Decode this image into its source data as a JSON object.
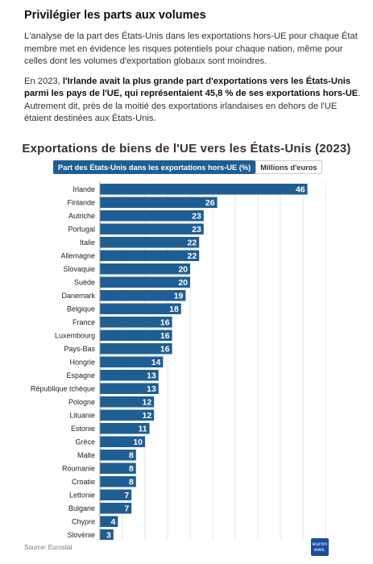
{
  "article": {
    "heading": "Privilégier les parts aux volumes",
    "para1": "L'analyse de la part des États-Unis dans les exportations hors-UE pour chaque État membre met en évidence les risques potentiels pour chaque nation, même pour celles dont les volumes d'exportation globaux sont moindres.",
    "para2_lead": "En 2023, ",
    "para2_bold": "l'Irlande avait la plus grande part d'exportations vers les États-Unis parmi les pays de l'UE, qui représentaient 45,8 % de ses exportations hors-UE",
    "para2_rest": ". Autrement dit, près de la moitié des exportations irlandaises en dehors de l'UE étaient destinées aux États-Unis."
  },
  "toggle": {
    "share_label": "Part des États-Unis dans les exportations hors-UE (%)",
    "millions_label": "Millions d'euros",
    "active": "share"
  },
  "source": "Source: Eurostat",
  "logo_text": "euronews.",
  "colors": {
    "bar": "#1f5e92",
    "toggle_active": "#1f5e92",
    "logo": "#1d4c9b"
  },
  "chart_data": {
    "type": "bar",
    "orientation": "horizontal",
    "title": "Exportations de biens de l'UE vers les États-Unis (2023)",
    "xlabel": "",
    "ylabel": "",
    "xlim": [
      0,
      50
    ],
    "xticks": [
      0,
      5,
      10,
      15,
      20,
      25,
      30,
      35,
      40,
      45,
      50
    ],
    "grid": true,
    "categories": [
      "Irlande",
      "Finlande",
      "Autriche",
      "Portugal",
      "Italie",
      "Allemagne",
      "Slovaquie",
      "Suède",
      "Danemark",
      "Belgique",
      "France",
      "Luxembourg",
      "Pays-Bas",
      "Hongrie",
      "Espagne",
      "République tchèque",
      "Pologne",
      "Lituanie",
      "Estonie",
      "Grèce",
      "Malte",
      "Roumanie",
      "Croatie",
      "Lettonie",
      "Bulgarie",
      "Chypre",
      "Slovénie"
    ],
    "values": [
      46,
      26,
      23,
      23,
      22,
      22,
      20,
      20,
      19,
      18,
      16,
      16,
      16,
      14,
      13,
      13,
      12,
      12,
      11,
      10,
      8,
      8,
      8,
      7,
      7,
      4,
      3
    ]
  }
}
